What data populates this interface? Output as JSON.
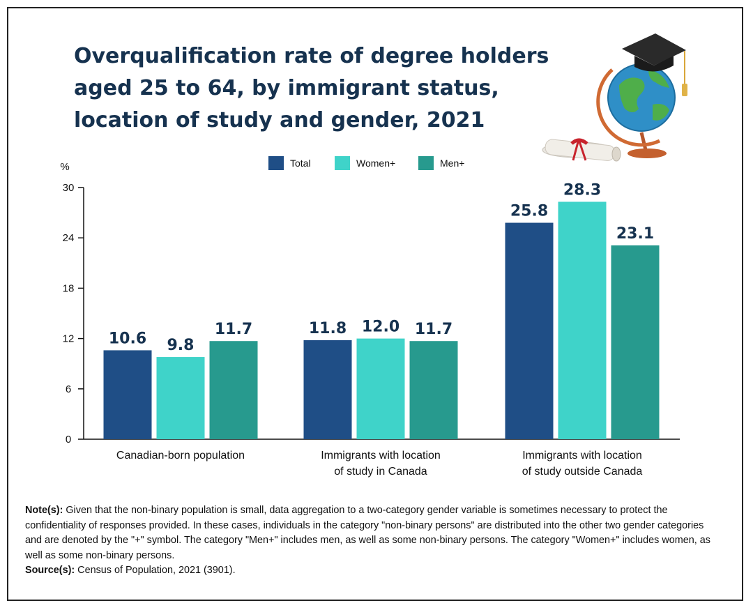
{
  "title_lines": [
    "Overqualification rate of degree holders",
    "aged 25 to 64, by immigrant status,",
    "location of study and gender, 2021"
  ],
  "colors": {
    "total": "#1f4e86",
    "women": "#3fd3c9",
    "men": "#279a8e",
    "title": "#16324f"
  },
  "chart_data": {
    "type": "bar",
    "categories": [
      [
        "Canadian-born population"
      ],
      [
        "Immigrants with location",
        "of study in Canada"
      ],
      [
        "Immigrants with location",
        "of study outside Canada"
      ]
    ],
    "series": [
      {
        "name": "Total",
        "values": [
          10.6,
          11.8,
          25.8
        ],
        "labels": [
          "10.6",
          "11.8",
          "25.8"
        ]
      },
      {
        "name": "Women+",
        "values": [
          9.8,
          12.0,
          28.3
        ],
        "labels": [
          "9.8",
          "12.0",
          "28.3"
        ]
      },
      {
        "name": "Men+",
        "values": [
          11.7,
          11.7,
          23.1
        ],
        "labels": [
          "11.7",
          "11.7",
          "23.1"
        ]
      }
    ],
    "ylabel": "%",
    "yticks": [
      0,
      6,
      12,
      18,
      24,
      30
    ],
    "ylim": [
      0,
      30
    ],
    "grid": false,
    "legend_position": "top-center"
  },
  "notes": {
    "note_label": "Note(s):",
    "note_text": " Given that the non-binary population is small, data aggregation to a two-category gender variable is sometimes necessary to protect the confidentiality of responses provided. In these cases, individuals in the category \"non-binary persons\" are distributed into the other two gender categories and are denoted by the \"+\" symbol. The category \"Men+\" includes men, as well as some non-binary persons. The category \"Women+\" includes women, as well as some non-binary persons.",
    "source_label": "Source(s):",
    "source_text": " Census of Population, 2021 (3901)."
  }
}
